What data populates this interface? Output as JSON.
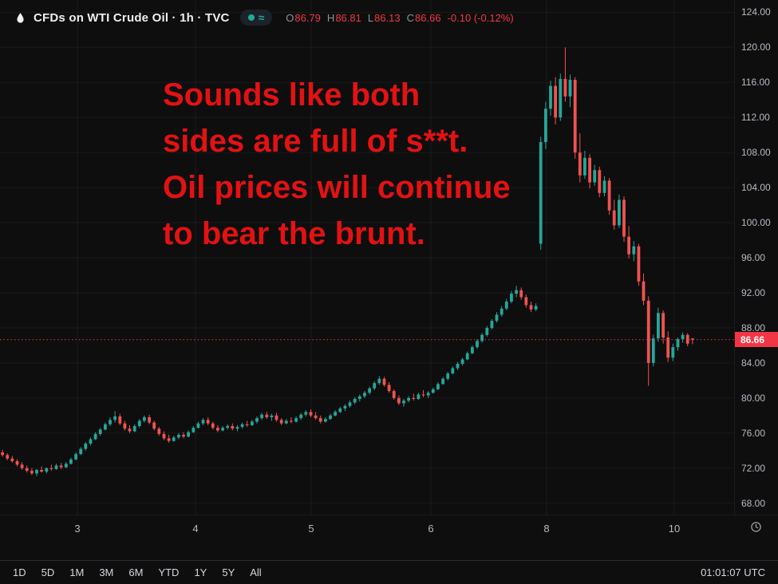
{
  "header": {
    "symbol_title": "CFDs on WTI Crude Oil · 1h · TVC",
    "indicator_wave": "≈",
    "ohlc": {
      "o_label": "O",
      "o": "86.79",
      "h_label": "H",
      "h": "86.81",
      "l_label": "L",
      "l": "86.13",
      "c_label": "C",
      "c": "86.66",
      "change": "-0.10 (-0.12%)"
    }
  },
  "annotation": {
    "lines": [
      "Sounds like both",
      "sides are full of s**t.",
      "Oil prices will continue",
      "to bear the brunt."
    ],
    "color": "#e31212"
  },
  "toolbar": {
    "ranges": [
      "1D",
      "5D",
      "1M",
      "3M",
      "6M",
      "YTD",
      "1Y",
      "5Y",
      "All"
    ],
    "clock": "01:01:07 UTC"
  },
  "colors": {
    "up": "#26a69a",
    "down": "#ef5350",
    "grid": "rgba(255,255,255,0.05)",
    "price_line": "#f23645",
    "price_tag_bg": "#f23645",
    "axis_text": "#b7bac3",
    "ohlc_value": "#f23645",
    "annotation": "#e31212"
  },
  "chart_data": {
    "type": "candlestick",
    "title": "CFDs on WTI Crude Oil · 1h · TVC",
    "symbol": "CFDs on WTI Crude Oil",
    "interval": "1h",
    "exchange": "TVC",
    "current_price": 86.66,
    "ylim": [
      66.7,
      125.4
    ],
    "price_axis_ticks": [
      124,
      120,
      116,
      112,
      108,
      104,
      100,
      96,
      92,
      88,
      84,
      80,
      76,
      72,
      68
    ],
    "time_labels": [
      {
        "label": "3",
        "pos": 0.1054
      },
      {
        "label": "4",
        "pos": 0.2663
      },
      {
        "label": "5",
        "pos": 0.4239
      },
      {
        "label": "6",
        "pos": 0.587
      },
      {
        "label": "8",
        "pos": 0.7446
      },
      {
        "label": "10",
        "pos": 0.9185
      }
    ],
    "slots": 150,
    "candles": [
      [
        73.8,
        74.1,
        73.3,
        73.5
      ],
      [
        73.5,
        73.7,
        72.9,
        73.1
      ],
      [
        73.1,
        73.4,
        72.6,
        72.8
      ],
      [
        72.8,
        73.0,
        72.2,
        72.4
      ],
      [
        72.4,
        72.7,
        71.8,
        72.0
      ],
      [
        72.0,
        72.3,
        71.5,
        71.7
      ],
      [
        71.7,
        72.0,
        71.2,
        71.4
      ],
      [
        71.4,
        71.9,
        71.1,
        71.8
      ],
      [
        71.8,
        72.2,
        71.5,
        71.6
      ],
      [
        71.6,
        72.1,
        71.4,
        72.0
      ],
      [
        72.0,
        72.4,
        71.7,
        71.9
      ],
      [
        71.9,
        72.5,
        71.8,
        72.3
      ],
      [
        72.3,
        72.6,
        71.9,
        72.1
      ],
      [
        72.1,
        72.7,
        72.0,
        72.5
      ],
      [
        72.5,
        73.2,
        72.4,
        73.0
      ],
      [
        73.0,
        73.8,
        72.9,
        73.6
      ],
      [
        73.6,
        74.4,
        73.5,
        74.2
      ],
      [
        74.2,
        75.0,
        74.0,
        74.8
      ],
      [
        74.8,
        75.5,
        74.6,
        75.3
      ],
      [
        75.3,
        76.1,
        75.2,
        75.9
      ],
      [
        75.9,
        76.6,
        75.7,
        76.4
      ],
      [
        76.4,
        77.2,
        76.3,
        77.0
      ],
      [
        77.0,
        77.8,
        76.8,
        77.5
      ],
      [
        77.5,
        78.5,
        77.2,
        77.9
      ],
      [
        77.9,
        78.2,
        76.9,
        77.1
      ],
      [
        77.1,
        77.4,
        76.3,
        76.5
      ],
      [
        76.5,
        76.9,
        76.0,
        76.2
      ],
      [
        76.2,
        77.0,
        76.1,
        76.8
      ],
      [
        76.8,
        77.6,
        76.6,
        77.4
      ],
      [
        77.4,
        78.0,
        77.2,
        77.8
      ],
      [
        77.8,
        78.1,
        77.0,
        77.2
      ],
      [
        77.2,
        77.4,
        76.3,
        76.5
      ],
      [
        76.5,
        76.7,
        75.7,
        75.9
      ],
      [
        75.9,
        76.2,
        75.2,
        75.4
      ],
      [
        75.4,
        75.8,
        74.9,
        75.1
      ],
      [
        75.1,
        75.7,
        75.0,
        75.5
      ],
      [
        75.5,
        76.0,
        75.3,
        75.8
      ],
      [
        75.8,
        76.1,
        75.4,
        75.6
      ],
      [
        75.6,
        76.3,
        75.5,
        76.1
      ],
      [
        76.1,
        76.8,
        76.0,
        76.6
      ],
      [
        76.6,
        77.3,
        76.5,
        77.1
      ],
      [
        77.1,
        77.7,
        76.9,
        77.5
      ],
      [
        77.5,
        77.8,
        76.9,
        77.1
      ],
      [
        77.1,
        77.3,
        76.4,
        76.6
      ],
      [
        76.6,
        76.9,
        76.1,
        76.3
      ],
      [
        76.3,
        76.8,
        76.2,
        76.6
      ],
      [
        76.6,
        77.0,
        76.4,
        76.8
      ],
      [
        76.8,
        77.1,
        76.3,
        76.5
      ],
      [
        76.5,
        76.9,
        76.2,
        76.7
      ],
      [
        76.7,
        77.2,
        76.5,
        77.0
      ],
      [
        77.0,
        77.4,
        76.7,
        76.9
      ],
      [
        76.9,
        77.5,
        76.8,
        77.3
      ],
      [
        77.3,
        77.9,
        77.1,
        77.7
      ],
      [
        77.7,
        78.3,
        77.5,
        78.1
      ],
      [
        78.1,
        78.4,
        77.6,
        77.8
      ],
      [
        77.8,
        78.2,
        77.4,
        78.0
      ],
      [
        78.0,
        78.3,
        77.3,
        77.5
      ],
      [
        77.5,
        77.7,
        76.9,
        77.1
      ],
      [
        77.1,
        77.6,
        77.0,
        77.4
      ],
      [
        77.4,
        77.8,
        77.1,
        77.3
      ],
      [
        77.3,
        77.9,
        77.2,
        77.7
      ],
      [
        77.7,
        78.3,
        77.5,
        78.1
      ],
      [
        78.1,
        78.6,
        77.9,
        78.4
      ],
      [
        78.4,
        78.7,
        77.8,
        78.0
      ],
      [
        78.0,
        78.4,
        77.5,
        77.7
      ],
      [
        77.7,
        78.0,
        77.1,
        77.3
      ],
      [
        77.3,
        77.8,
        77.2,
        77.6
      ],
      [
        77.6,
        78.2,
        77.5,
        78.0
      ],
      [
        78.0,
        78.6,
        77.9,
        78.4
      ],
      [
        78.4,
        79.0,
        78.3,
        78.8
      ],
      [
        78.8,
        79.3,
        78.5,
        79.1
      ],
      [
        79.1,
        79.7,
        78.9,
        79.5
      ],
      [
        79.5,
        80.1,
        79.3,
        79.9
      ],
      [
        79.9,
        80.4,
        79.6,
        80.2
      ],
      [
        80.2,
        80.8,
        80.0,
        80.6
      ],
      [
        80.6,
        81.3,
        80.4,
        81.1
      ],
      [
        81.1,
        81.9,
        80.9,
        81.7
      ],
      [
        81.7,
        82.5,
        81.5,
        82.2
      ],
      [
        82.2,
        82.4,
        81.3,
        81.5
      ],
      [
        81.5,
        81.8,
        80.6,
        80.8
      ],
      [
        80.8,
        81.0,
        79.8,
        80.0
      ],
      [
        80.0,
        80.3,
        79.2,
        79.4
      ],
      [
        79.4,
        79.9,
        79.0,
        79.7
      ],
      [
        79.7,
        80.2,
        79.5,
        80.0
      ],
      [
        80.0,
        80.5,
        79.7,
        79.9
      ],
      [
        79.9,
        80.6,
        79.8,
        80.4
      ],
      [
        80.4,
        80.9,
        80.1,
        80.3
      ],
      [
        80.3,
        80.8,
        80.0,
        80.6
      ],
      [
        80.6,
        81.2,
        80.5,
        81.0
      ],
      [
        81.0,
        81.8,
        80.9,
        81.6
      ],
      [
        81.6,
        82.4,
        81.5,
        82.2
      ],
      [
        82.2,
        83.0,
        82.0,
        82.8
      ],
      [
        82.8,
        83.6,
        82.7,
        83.4
      ],
      [
        83.4,
        84.1,
        83.2,
        83.9
      ],
      [
        83.9,
        84.6,
        83.7,
        84.4
      ],
      [
        84.4,
        85.3,
        84.3,
        85.1
      ],
      [
        85.1,
        86.0,
        85.0,
        85.8
      ],
      [
        85.8,
        86.7,
        85.6,
        86.5
      ],
      [
        86.5,
        87.4,
        86.3,
        87.2
      ],
      [
        87.2,
        88.2,
        87.0,
        88.0
      ],
      [
        88.0,
        89.0,
        87.8,
        88.8
      ],
      [
        88.8,
        89.8,
        88.6,
        89.5
      ],
      [
        89.5,
        90.5,
        89.3,
        90.2
      ],
      [
        90.2,
        91.3,
        90.0,
        91.0
      ],
      [
        91.0,
        92.2,
        90.8,
        91.9
      ],
      [
        91.9,
        92.8,
        91.5,
        92.3
      ],
      [
        92.3,
        92.6,
        91.2,
        91.5
      ],
      [
        91.5,
        91.8,
        90.3,
        90.6
      ],
      [
        90.6,
        91.0,
        89.8,
        90.1
      ],
      [
        90.1,
        90.8,
        89.9,
        90.5
      ],
      [
        97.6,
        109.8,
        96.9,
        109.2
      ],
      [
        109.2,
        113.8,
        108.4,
        113.0
      ],
      [
        113.0,
        116.2,
        112.2,
        115.6
      ],
      [
        115.6,
        116.6,
        111.2,
        112.0
      ],
      [
        112.0,
        117.0,
        111.6,
        116.4
      ],
      [
        116.4,
        120.0,
        113.8,
        114.4
      ],
      [
        114.4,
        116.9,
        113.2,
        116.3
      ],
      [
        116.3,
        116.6,
        107.3,
        108.0
      ],
      [
        108.0,
        110.2,
        104.6,
        105.4
      ],
      [
        105.4,
        108.2,
        105.0,
        107.4
      ],
      [
        107.4,
        107.8,
        103.9,
        104.6
      ],
      [
        104.6,
        106.6,
        104.2,
        106.0
      ],
      [
        106.0,
        106.4,
        102.9,
        103.4
      ],
      [
        103.4,
        105.3,
        103.0,
        104.8
      ],
      [
        104.8,
        105.1,
        100.9,
        101.4
      ],
      [
        101.4,
        102.6,
        99.2,
        99.7
      ],
      [
        99.7,
        103.2,
        99.4,
        102.6
      ],
      [
        102.6,
        103.0,
        97.8,
        98.4
      ],
      [
        98.4,
        99.6,
        95.9,
        96.4
      ],
      [
        96.4,
        97.9,
        95.6,
        97.3
      ],
      [
        97.3,
        97.6,
        92.8,
        93.3
      ],
      [
        93.3,
        94.2,
        90.6,
        91.1
      ],
      [
        91.1,
        91.6,
        81.4,
        84.0
      ],
      [
        84.0,
        87.2,
        83.6,
        86.8
      ],
      [
        86.8,
        90.3,
        86.4,
        89.7
      ],
      [
        89.7,
        90.0,
        86.2,
        86.9
      ],
      [
        86.9,
        87.6,
        84.1,
        84.6
      ],
      [
        84.6,
        86.2,
        84.2,
        85.8
      ],
      [
        85.8,
        86.9,
        85.4,
        86.7
      ],
      [
        86.7,
        87.5,
        86.3,
        87.2
      ],
      [
        87.2,
        87.4,
        85.9,
        86.2
      ],
      [
        86.79,
        86.81,
        86.13,
        86.66
      ]
    ]
  }
}
